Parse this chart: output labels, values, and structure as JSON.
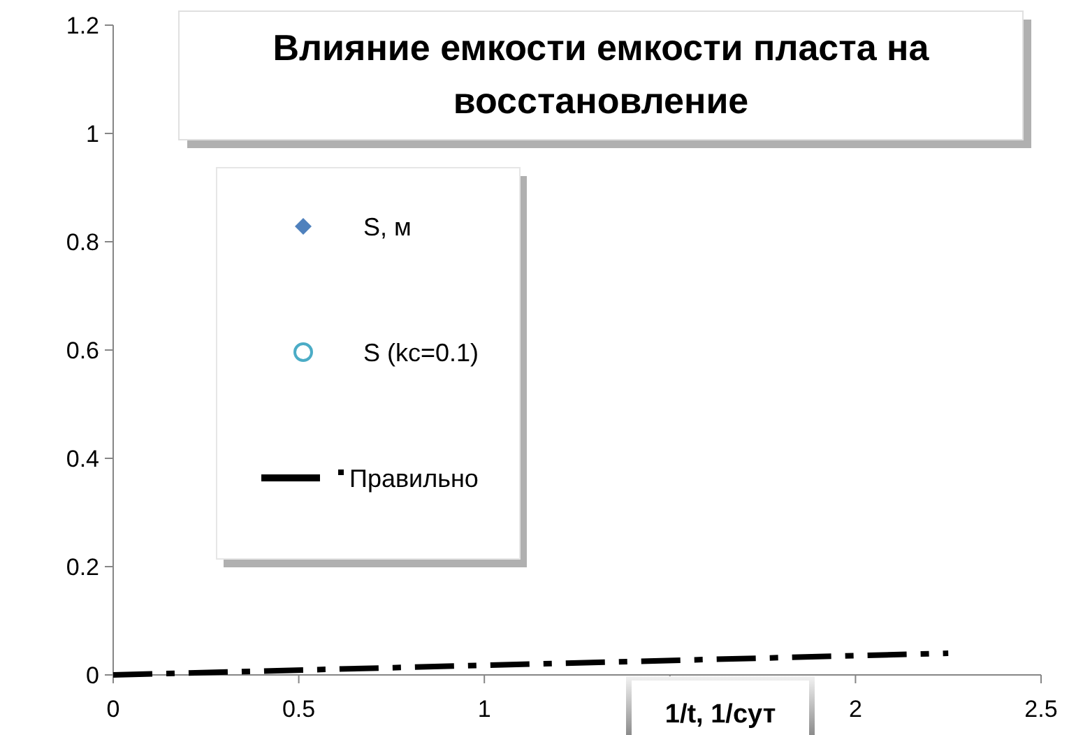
{
  "chart_data": {
    "type": "scatter",
    "title": "Влияние емкости емкости пласта на восстановление",
    "xlabel": "1/t, 1/сут",
    "xlim": [
      0,
      2.5
    ],
    "xticks": [
      0,
      0.5,
      1,
      {
        "value": 1.5,
        "label": null
      },
      2,
      2.5
    ],
    "ylim": [
      0,
      1.2
    ],
    "yticks": [
      0,
      0.2,
      0.4,
      0.6,
      0.8,
      1,
      1.2
    ],
    "grid": false,
    "legend": "left",
    "series": [
      {
        "name": "S, м",
        "marker": "diamond",
        "color": "#4f81bd"
      },
      {
        "name": "S (kc=0.1)",
        "marker": "circle",
        "color": "#4bacc6"
      },
      {
        "name": "Правильно",
        "type": "line",
        "marker": "none",
        "line_style": "dashed",
        "color": "#000000",
        "x": [
          0,
          2.25
        ],
        "values": [
          0,
          0.04
        ]
      }
    ]
  }
}
